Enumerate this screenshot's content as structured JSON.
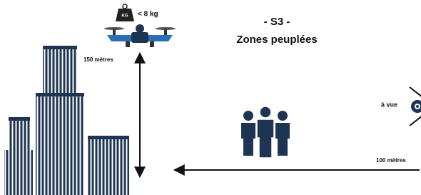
{
  "drone": {
    "weight_icon": "KG",
    "max_weight": "< 8 kg"
  },
  "scenario": {
    "code": "- S3 -",
    "title": "Zones peuplées"
  },
  "height_label": "150 mètres",
  "sight_label": "à vue",
  "distance_label": "100 mètres"
}
